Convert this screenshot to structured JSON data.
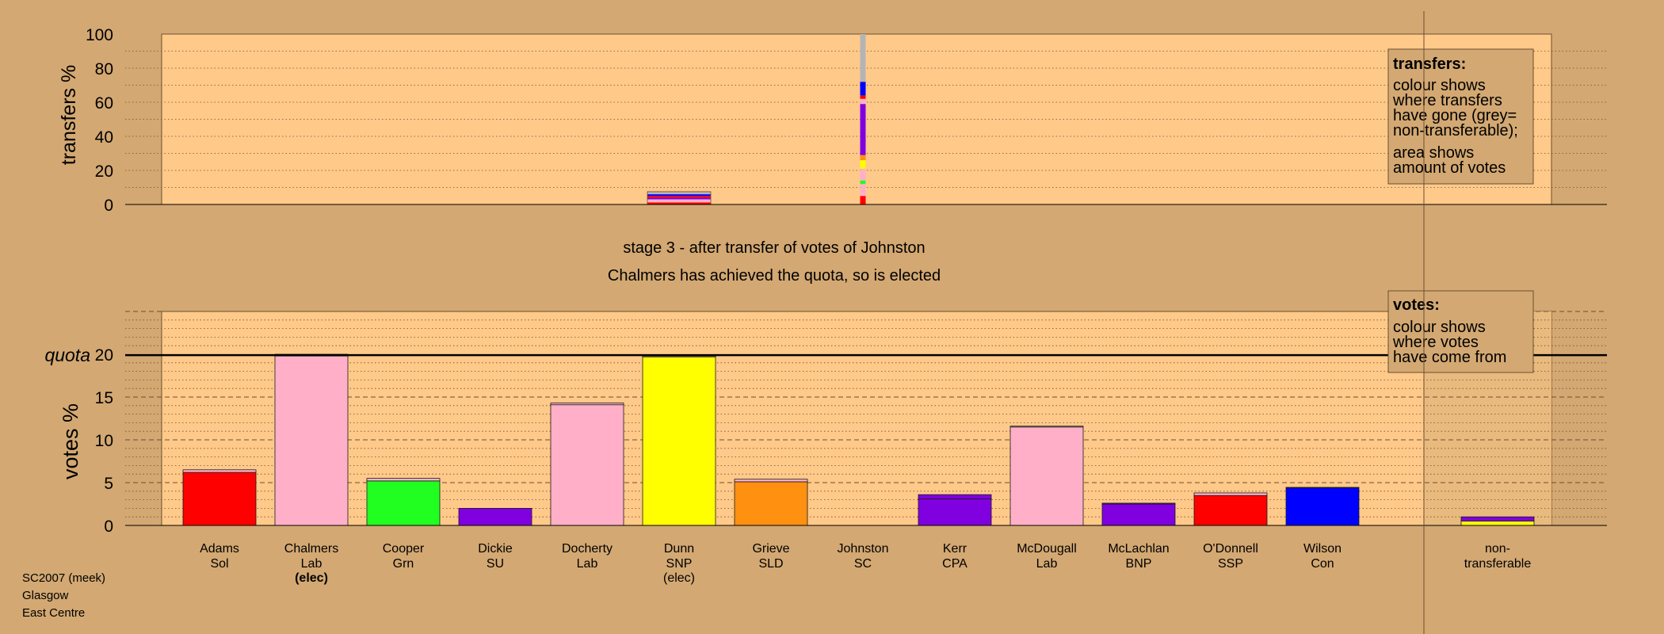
{
  "chart_data": [
    {
      "type": "bar",
      "name": "transfers",
      "ylabel": "transfers %",
      "ylim": [
        0,
        100
      ],
      "yticks": [
        0,
        20,
        40,
        60,
        80,
        100
      ],
      "grid": true,
      "legend": {
        "position": "top-right",
        "title": "transfers:",
        "lines1": [
          "colour shows",
          "where transfers",
          "have gone (grey=",
          "non-transferable);"
        ],
        "lines2": [
          "area shows",
          "amount of votes"
        ]
      },
      "bars": [
        {
          "candidate": "Dunn",
          "segments": [
            {
              "color": "#ff0000",
              "value": 1.2
            },
            {
              "color": "#ffb0c8",
              "value": 1.8
            },
            {
              "color": "#8000e0",
              "value": 1.0
            },
            {
              "color": "#ff0000",
              "value": 1.0
            },
            {
              "color": "#0000ff",
              "value": 1.0
            },
            {
              "color": "#b4b4b4",
              "value": 1.5
            }
          ]
        },
        {
          "candidate": "Johnston",
          "segments": [
            {
              "color": "#ff0000",
              "value": 5
            },
            {
              "color": "#ffb0c8",
              "value": 7
            },
            {
              "color": "#20ff20",
              "value": 2
            },
            {
              "color": "#ffb0c8",
              "value": 7
            },
            {
              "color": "#ffff00",
              "value": 5
            },
            {
              "color": "#ff9010",
              "value": 3
            },
            {
              "color": "#8000e0",
              "value": 30
            },
            {
              "color": "#ffb0c8",
              "value": 3
            },
            {
              "color": "#ff0000",
              "value": 2
            },
            {
              "color": "#0000ff",
              "value": 8
            },
            {
              "color": "#b4b4b4",
              "value": 28
            }
          ]
        }
      ]
    },
    {
      "type": "bar",
      "name": "votes",
      "ylabel": "votes %",
      "ylim": [
        0,
        25
      ],
      "yticks": [
        0,
        5,
        10,
        15,
        20
      ],
      "quota": 19.9,
      "quota_label": "quota",
      "grid": true,
      "legend": {
        "position": "top-right",
        "title": "votes:",
        "lines1": [
          "colour shows",
          "where votes",
          "have come from"
        ]
      },
      "categories": [
        {
          "name": "Adams",
          "party": "Sol",
          "note": ""
        },
        {
          "name": "Chalmers",
          "party": "Lab",
          "note": "(elec)"
        },
        {
          "name": "Cooper",
          "party": "Grn",
          "note": ""
        },
        {
          "name": "Dickie",
          "party": "SU",
          "note": ""
        },
        {
          "name": "Docherty",
          "party": "Lab",
          "note": ""
        },
        {
          "name": "Dunn",
          "party": "SNP",
          "note": "(elec)"
        },
        {
          "name": "Grieve",
          "party": "SLD",
          "note": ""
        },
        {
          "name": "Johnston",
          "party": "SC",
          "note": ""
        },
        {
          "name": "Kerr",
          "party": "CPA",
          "note": ""
        },
        {
          "name": "McDougall",
          "party": "Lab",
          "note": ""
        },
        {
          "name": "McLachlan",
          "party": "BNP",
          "note": ""
        },
        {
          "name": "O'Donnell",
          "party": "SSP",
          "note": ""
        },
        {
          "name": "Wilson",
          "party": "Con",
          "note": ""
        }
      ],
      "nontransferable_label": [
        "non-",
        "transferable"
      ],
      "bars": [
        {
          "candidate": "Adams",
          "segments": [
            {
              "color": "#ff0000",
              "value": 6.2
            },
            {
              "color": "#ffb0c8",
              "value": 0.3
            }
          ]
        },
        {
          "candidate": "Chalmers",
          "segments": [
            {
              "color": "#ffb0c8",
              "value": 19.8
            },
            {
              "color": "#ffb0c8",
              "value": 0.2
            }
          ]
        },
        {
          "candidate": "Cooper",
          "segments": [
            {
              "color": "#20ff20",
              "value": 5.2
            },
            {
              "color": "#ffb0c8",
              "value": 0.3
            }
          ]
        },
        {
          "candidate": "Dickie",
          "segments": [
            {
              "color": "#8000e0",
              "value": 2.0
            }
          ]
        },
        {
          "candidate": "Docherty",
          "segments": [
            {
              "color": "#ffb0c8",
              "value": 14.1
            },
            {
              "color": "#ffb0c8",
              "value": 0.2
            }
          ]
        },
        {
          "candidate": "Dunn",
          "segments": [
            {
              "color": "#ffff00",
              "value": 19.7
            },
            {
              "color": "#ffb0c8",
              "value": 0.1
            }
          ]
        },
        {
          "candidate": "Grieve",
          "segments": [
            {
              "color": "#ff9010",
              "value": 5.1
            },
            {
              "color": "#ffb0c8",
              "value": 0.3
            }
          ]
        },
        {
          "candidate": "Johnston",
          "segments": []
        },
        {
          "candidate": "Kerr",
          "segments": [
            {
              "color": "#8000e0",
              "value": 3.1
            },
            {
              "color": "#8000e0",
              "value": 0.5
            }
          ]
        },
        {
          "candidate": "McDougall",
          "segments": [
            {
              "color": "#ffb0c8",
              "value": 11.5
            },
            {
              "color": "#ffb0c8",
              "value": 0.1
            }
          ]
        },
        {
          "candidate": "McLachlan",
          "segments": [
            {
              "color": "#8000e0",
              "value": 2.5
            },
            {
              "color": "#8000e0",
              "value": 0.1
            }
          ]
        },
        {
          "candidate": "O'Donnell",
          "segments": [
            {
              "color": "#ff0000",
              "value": 3.5
            },
            {
              "color": "#ffb0c8",
              "value": 0.3
            }
          ]
        },
        {
          "candidate": "Wilson",
          "segments": [
            {
              "color": "#0000ff",
              "value": 4.4
            },
            {
              "color": "#0000ff",
              "value": 0.05
            }
          ]
        },
        {
          "candidate": "non-transferable",
          "segments": [
            {
              "color": "#ffff00",
              "value": 0.5
            },
            {
              "color": "#8000e0",
              "value": 0.5
            }
          ]
        }
      ]
    }
  ],
  "stage": {
    "line1": "stage 3 - after transfer of votes of Johnston",
    "line2": "Chalmers has achieved the quota, so is elected"
  },
  "footer": {
    "line1": "SC2007 (meek)",
    "line2": "Glasgow",
    "line3": "East Centre"
  },
  "colors": {
    "background": "#d3a872",
    "plot_area": "#ffc98a",
    "legend_box": "#d3a872",
    "nontransferable_shade": "#e8ba7e"
  }
}
